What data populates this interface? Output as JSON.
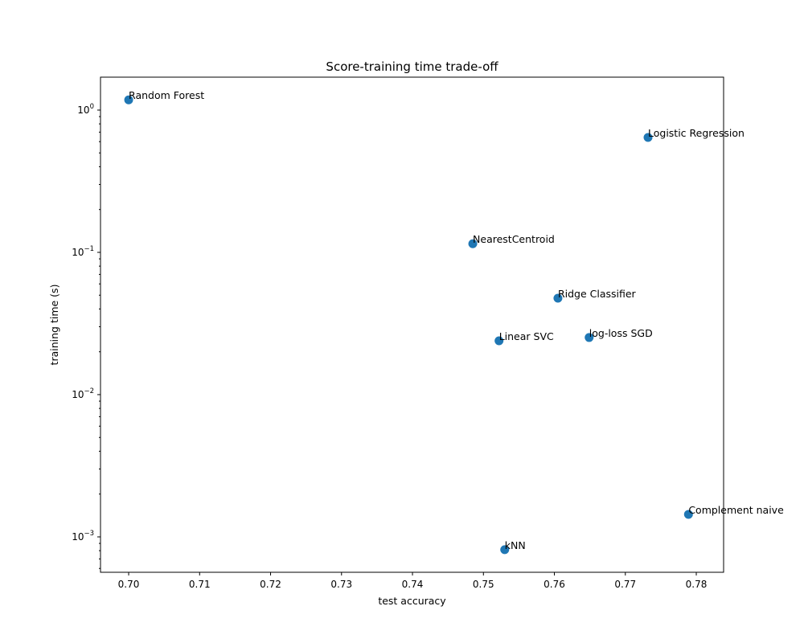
{
  "chart_data": {
    "type": "scatter",
    "title": "Score-training time trade-off",
    "xlabel": "test accuracy",
    "ylabel": "training time (s)",
    "xscale": "linear",
    "yscale": "log",
    "xlim": [
      0.69603,
      0.78385
    ],
    "ylim": [
      0.000564,
      1.704
    ],
    "xticks": [
      0.7,
      0.71,
      0.72,
      0.73,
      0.74,
      0.75,
      0.76,
      0.77,
      0.78
    ],
    "xtick_labels": [
      "0.70",
      "0.71",
      "0.72",
      "0.73",
      "0.74",
      "0.75",
      "0.76",
      "0.77",
      "0.78"
    ],
    "yticks": [
      0.001,
      0.01,
      0.1,
      1
    ],
    "ytick_labels": [
      {
        "base": "10",
        "exp": "−3"
      },
      {
        "base": "10",
        "exp": "−2"
      },
      {
        "base": "10",
        "exp": "−1"
      },
      {
        "base": "10",
        "exp": "0"
      }
    ],
    "grid": false,
    "color": "#1f77b4",
    "points": [
      {
        "label": "Random Forest",
        "x": 0.7,
        "y": 1.18
      },
      {
        "label": "Logistic Regression",
        "x": 0.7732,
        "y": 0.642
      },
      {
        "label": "NearestCentroid",
        "x": 0.7485,
        "y": 0.115
      },
      {
        "label": "Ridge Classifier",
        "x": 0.7605,
        "y": 0.0476
      },
      {
        "label": "Linear SVC",
        "x": 0.7522,
        "y": 0.0239
      },
      {
        "label": "log-loss SGD",
        "x": 0.7649,
        "y": 0.0252
      },
      {
        "label": "Complement naive",
        "x": 0.7789,
        "y": 0.00144
      },
      {
        "label": "kNN",
        "x": 0.753,
        "y": 0.000813
      }
    ]
  }
}
